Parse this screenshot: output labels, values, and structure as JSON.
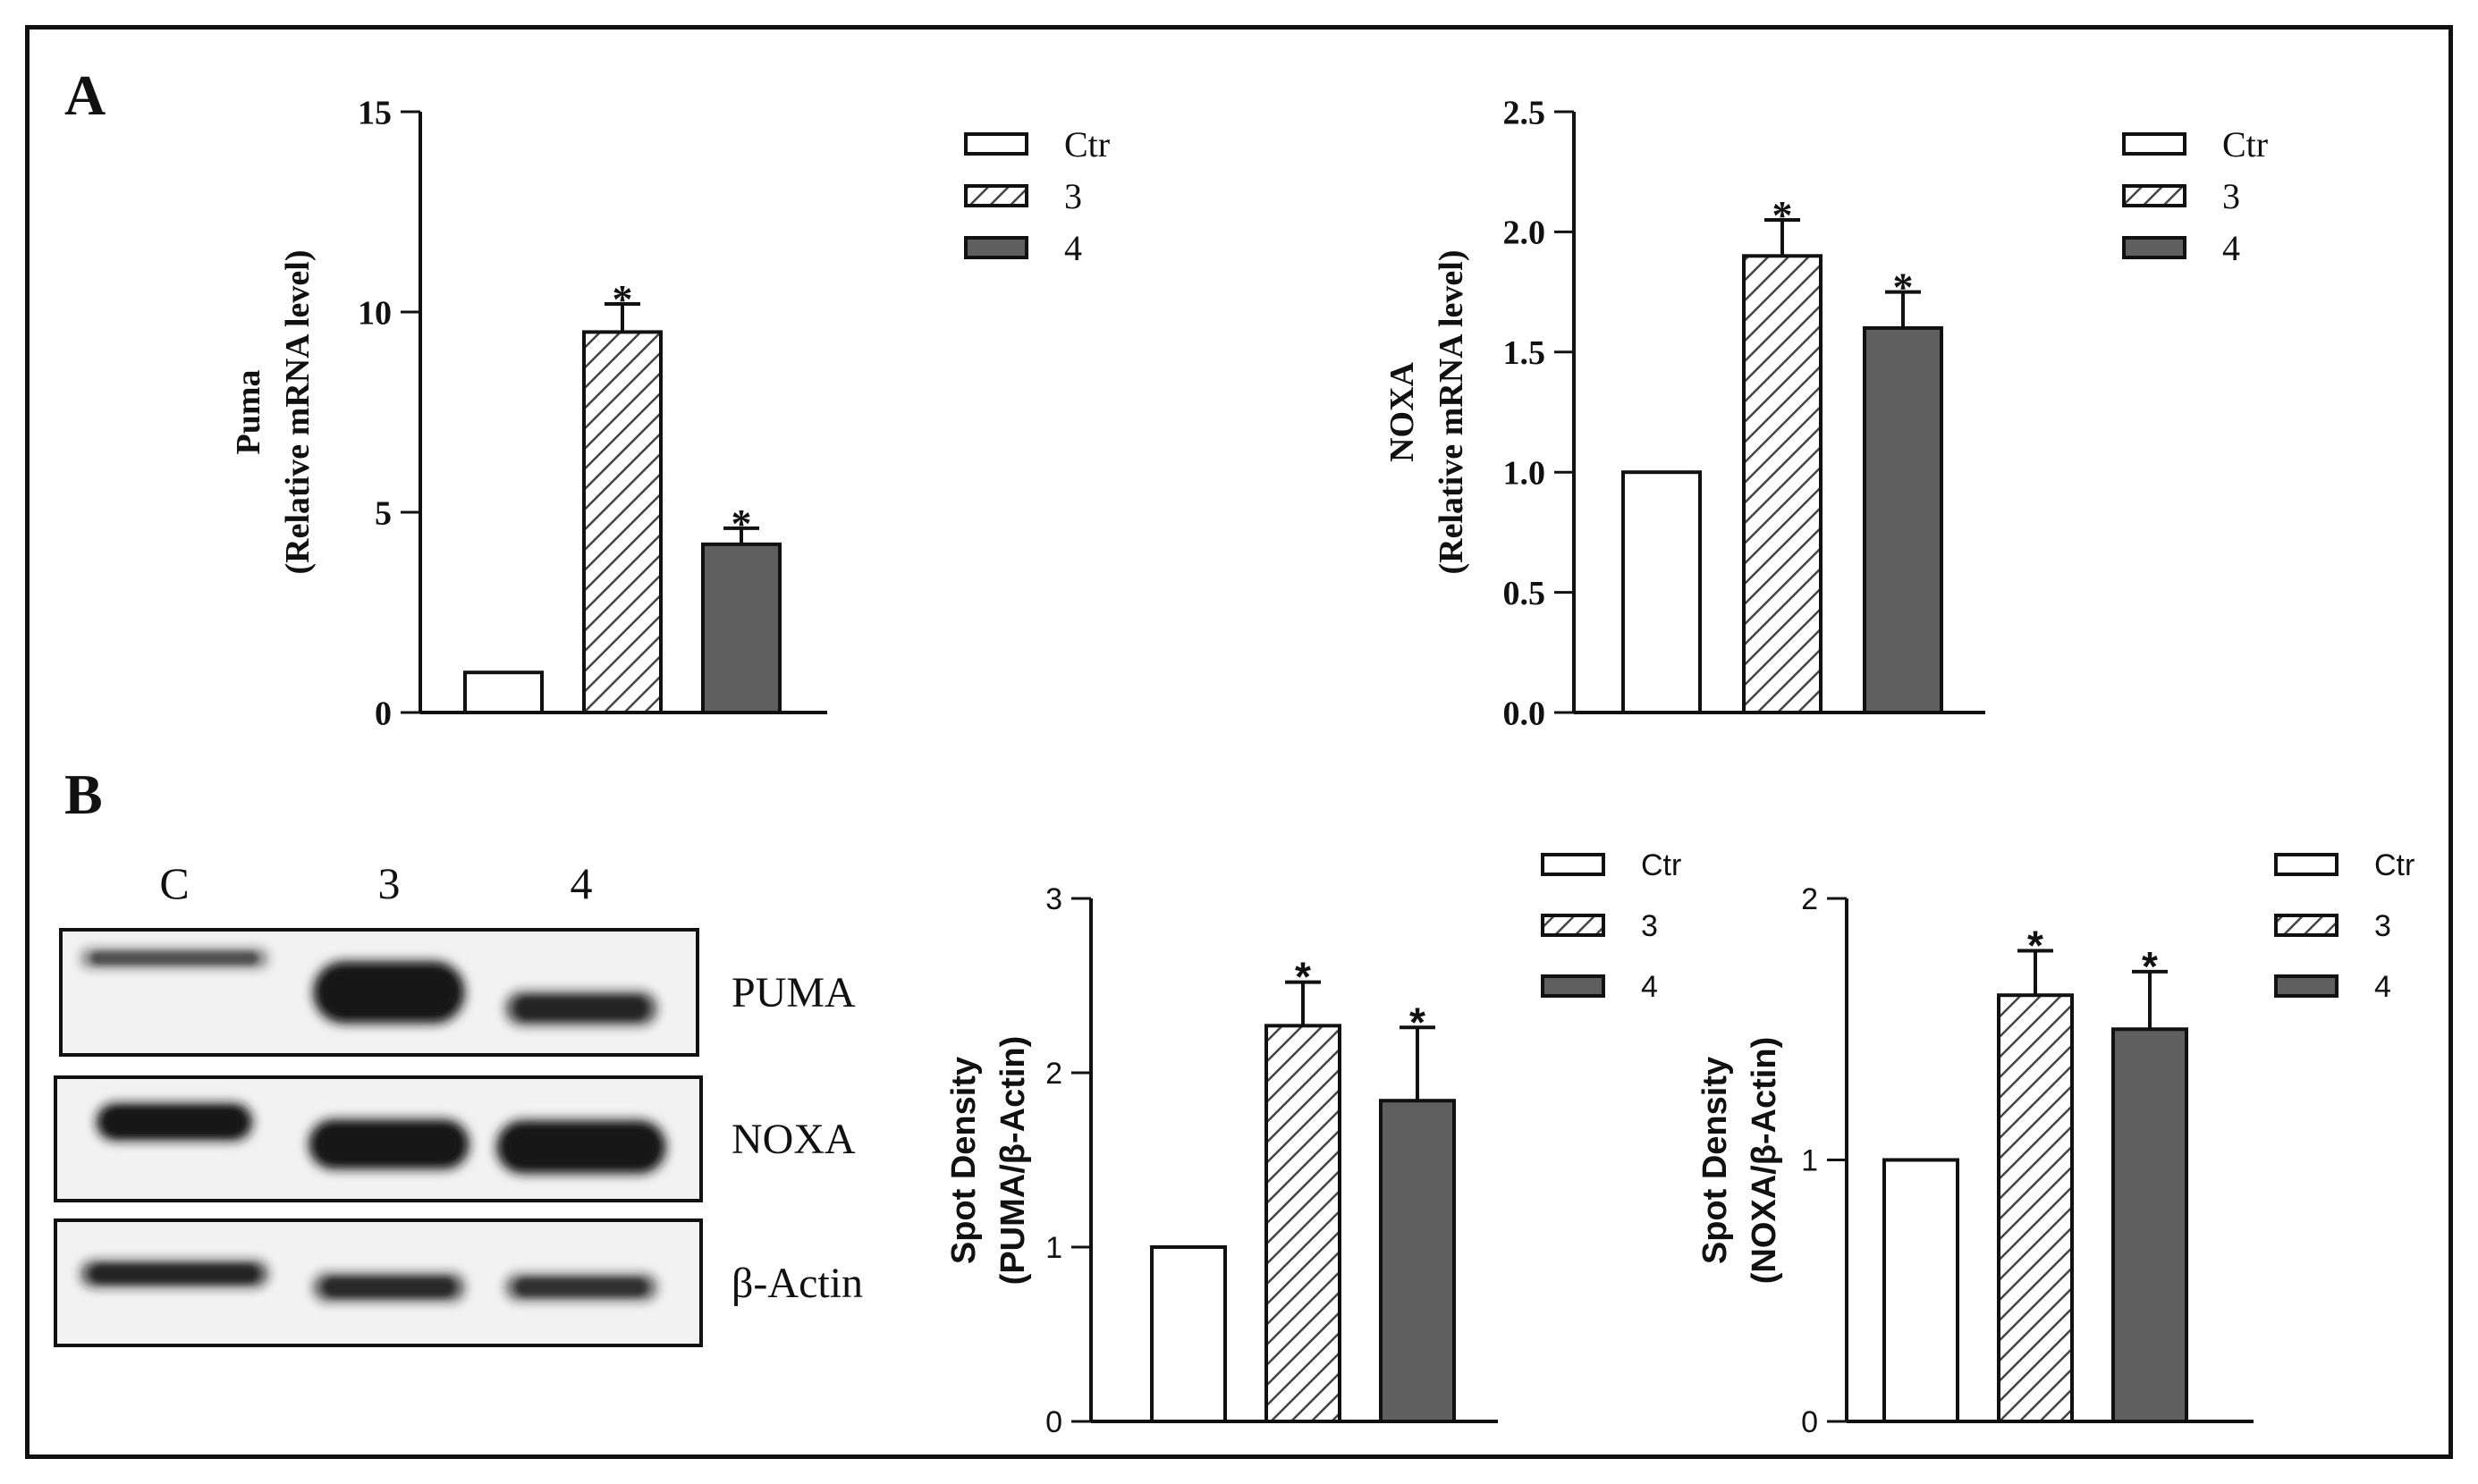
{
  "panels": {
    "a_label": "A",
    "b_label": "B"
  },
  "colors": {
    "ctr": "#ffffff",
    "hatch": "#444444",
    "dark": "#5f5f5f",
    "axis": "#111111",
    "band": "#141414"
  },
  "blot": {
    "lanes": [
      "C",
      "3",
      "4"
    ],
    "rows": [
      {
        "label": "PUMA",
        "intensity": [
          0.35,
          1.0,
          0.6
        ]
      },
      {
        "label": "NOXA",
        "intensity": [
          0.85,
          0.95,
          0.95
        ]
      },
      {
        "label": "β-Actin",
        "intensity": [
          0.6,
          0.55,
          0.5
        ]
      }
    ]
  },
  "chart_data": [
    {
      "type": "bar",
      "categories": [
        "Ctr",
        "3",
        "4"
      ],
      "values": [
        1.0,
        9.5,
        4.2
      ],
      "errors": [
        0,
        0.7,
        0.4
      ],
      "significance": [
        "",
        "*",
        "*"
      ],
      "ylabel_line1": "Puma",
      "ylabel_line2": "(Relative mRNA level)",
      "ylim": [
        0,
        15
      ],
      "yticks": [
        "0",
        "5",
        "10",
        "15"
      ],
      "legend": [
        "Ctr",
        "3",
        "4"
      ]
    },
    {
      "type": "bar",
      "categories": [
        "Ctr",
        "3",
        "4"
      ],
      "values": [
        1.0,
        1.9,
        1.6
      ],
      "errors": [
        0,
        0.15,
        0.15
      ],
      "significance": [
        "",
        "*",
        "*"
      ],
      "ylabel_line1": "NOXA",
      "ylabel_line2": "(Relative mRNA level)",
      "ylim": [
        0,
        2.5
      ],
      "yticks": [
        "0.0",
        "0.5",
        "1.0",
        "1.5",
        "2.0",
        "2.5"
      ],
      "legend": [
        "Ctr",
        "3",
        "4"
      ]
    },
    {
      "type": "bar",
      "categories": [
        "Ctr",
        "3",
        "4"
      ],
      "values": [
        1.0,
        2.27,
        1.84
      ],
      "errors": [
        0,
        0.25,
        0.42
      ],
      "significance": [
        "",
        "*",
        "*"
      ],
      "ylabel_line1": "Spot Density",
      "ylabel_line2": "(PUMA/β-Actin)",
      "ylim": [
        0,
        3
      ],
      "yticks": [
        "0",
        "1",
        "2",
        "3"
      ],
      "legend": [
        "Ctr",
        "3",
        "4"
      ]
    },
    {
      "type": "bar",
      "categories": [
        "Ctr",
        "3",
        "4"
      ],
      "values": [
        1.0,
        1.63,
        1.5
      ],
      "errors": [
        0,
        0.17,
        0.22
      ],
      "significance": [
        "",
        "*",
        "*"
      ],
      "ylabel_line1": "Spot Density",
      "ylabel_line2": "(NOXA/β-Actin)",
      "ylim": [
        0,
        2
      ],
      "yticks": [
        "0",
        "1",
        "2"
      ],
      "legend": [
        "Ctr",
        "3",
        "4"
      ]
    }
  ]
}
